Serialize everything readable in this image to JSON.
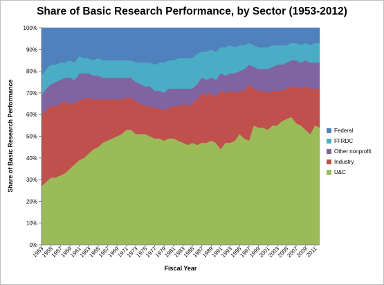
{
  "chart_data": {
    "type": "area",
    "stacked": true,
    "title": "Share of Basic Research Performance, by Sector (1953-2012)",
    "xlabel": "Fiscal Year",
    "ylabel": "Share of Basic Research Performance",
    "ylim": [
      0,
      100
    ],
    "yticks": [
      0,
      10,
      20,
      30,
      40,
      50,
      60,
      70,
      80,
      90,
      100
    ],
    "ytick_suffix": "%",
    "xtick_labels": [
      "1953",
      "1955",
      "1957",
      "1959",
      "1961",
      "1963",
      "1965",
      "1967",
      "1969",
      "1971",
      "1973",
      "1975",
      "1977",
      "1979",
      "1981",
      "1983",
      "1985",
      "1987",
      "1989",
      "1991",
      "1993",
      "1995",
      "1997",
      "1999",
      "2001",
      "2003",
      "2005",
      "2007",
      "2009",
      "2011"
    ],
    "grid": false,
    "legend": "right",
    "x": [
      1953,
      1954,
      1955,
      1956,
      1957,
      1958,
      1959,
      1960,
      1961,
      1962,
      1963,
      1964,
      1965,
      1966,
      1967,
      1968,
      1969,
      1970,
      1971,
      1972,
      1973,
      1974,
      1975,
      1976,
      1977,
      1978,
      1979,
      1980,
      1981,
      1982,
      1983,
      1984,
      1985,
      1986,
      1987,
      1988,
      1989,
      1990,
      1991,
      1992,
      1993,
      1994,
      1995,
      1996,
      1997,
      1998,
      1999,
      2000,
      2001,
      2002,
      2003,
      2004,
      2005,
      2006,
      2007,
      2008,
      2009,
      2010,
      2011,
      2012
    ],
    "series": [
      {
        "name": "U&C",
        "color": "#9bbb59",
        "values": [
          27,
          29,
          31,
          31,
          32,
          33,
          35,
          37,
          39,
          40,
          42,
          44,
          45,
          47,
          48,
          49,
          50,
          51,
          53,
          53,
          51,
          51,
          51,
          50,
          49,
          49,
          48,
          49,
          49,
          48,
          47,
          46,
          47,
          46,
          47,
          47,
          48,
          47,
          44,
          47,
          47,
          48,
          51,
          49,
          48,
          55,
          54,
          54,
          53,
          55,
          55,
          57,
          58,
          59,
          56,
          55,
          53,
          51,
          55,
          54
        ]
      },
      {
        "name": "Industry",
        "color": "#c0504d",
        "values": [
          33,
          33,
          33,
          33,
          33,
          33,
          30,
          28,
          28,
          27,
          26,
          23,
          22,
          20,
          19,
          18,
          17,
          16,
          15,
          15,
          15,
          14,
          13,
          14,
          14,
          14,
          14,
          14,
          15,
          16,
          18,
          18,
          18,
          21,
          23,
          22,
          22,
          21,
          27,
          23,
          24,
          22,
          20,
          22,
          26,
          17,
          17,
          17,
          17,
          16,
          16,
          14,
          14,
          14,
          17,
          17,
          20,
          21,
          17,
          18
        ]
      },
      {
        "name": "Other nonprofit",
        "color": "#8064a2",
        "values": [
          9,
          10,
          10,
          11,
          11,
          11,
          12,
          11,
          12,
          12,
          11,
          11,
          11,
          10,
          10,
          10,
          10,
          10,
          9,
          9,
          9,
          9,
          9,
          9,
          8,
          8,
          8,
          9,
          8,
          8,
          7,
          8,
          7,
          7,
          7,
          7,
          7,
          8,
          8,
          8,
          8,
          9,
          9,
          10,
          9,
          10,
          10,
          10,
          11,
          11,
          12,
          12,
          12,
          12,
          12,
          12,
          12,
          12,
          12,
          12
        ]
      },
      {
        "name": "FFRDC",
        "color": "#4bacc6",
        "values": [
          9,
          9,
          9,
          8,
          8,
          7,
          8,
          8,
          8,
          7,
          7,
          7,
          8,
          8,
          8,
          8,
          8,
          8,
          8,
          8,
          9,
          10,
          11,
          11,
          12,
          13,
          14,
          13,
          13,
          14,
          14,
          14,
          14,
          14,
          12,
          13,
          13,
          13,
          12,
          13,
          13,
          12,
          12,
          11,
          10,
          10,
          10,
          10,
          10,
          10,
          9,
          9,
          8,
          8,
          8,
          8,
          8,
          8,
          9,
          9
        ]
      },
      {
        "name": "Federal",
        "color": "#4f81bd",
        "values": [
          22,
          19,
          17,
          17,
          16,
          16,
          15,
          16,
          13,
          14,
          14,
          15,
          14,
          15,
          15,
          15,
          15,
          15,
          15,
          15,
          16,
          16,
          16,
          16,
          17,
          16,
          16,
          15,
          15,
          14,
          14,
          14,
          14,
          12,
          11,
          11,
          10,
          11,
          9,
          9,
          8,
          9,
          8,
          8,
          7,
          8,
          9,
          9,
          9,
          8,
          8,
          8,
          8,
          7,
          7,
          8,
          7,
          8,
          7,
          7
        ]
      }
    ]
  }
}
